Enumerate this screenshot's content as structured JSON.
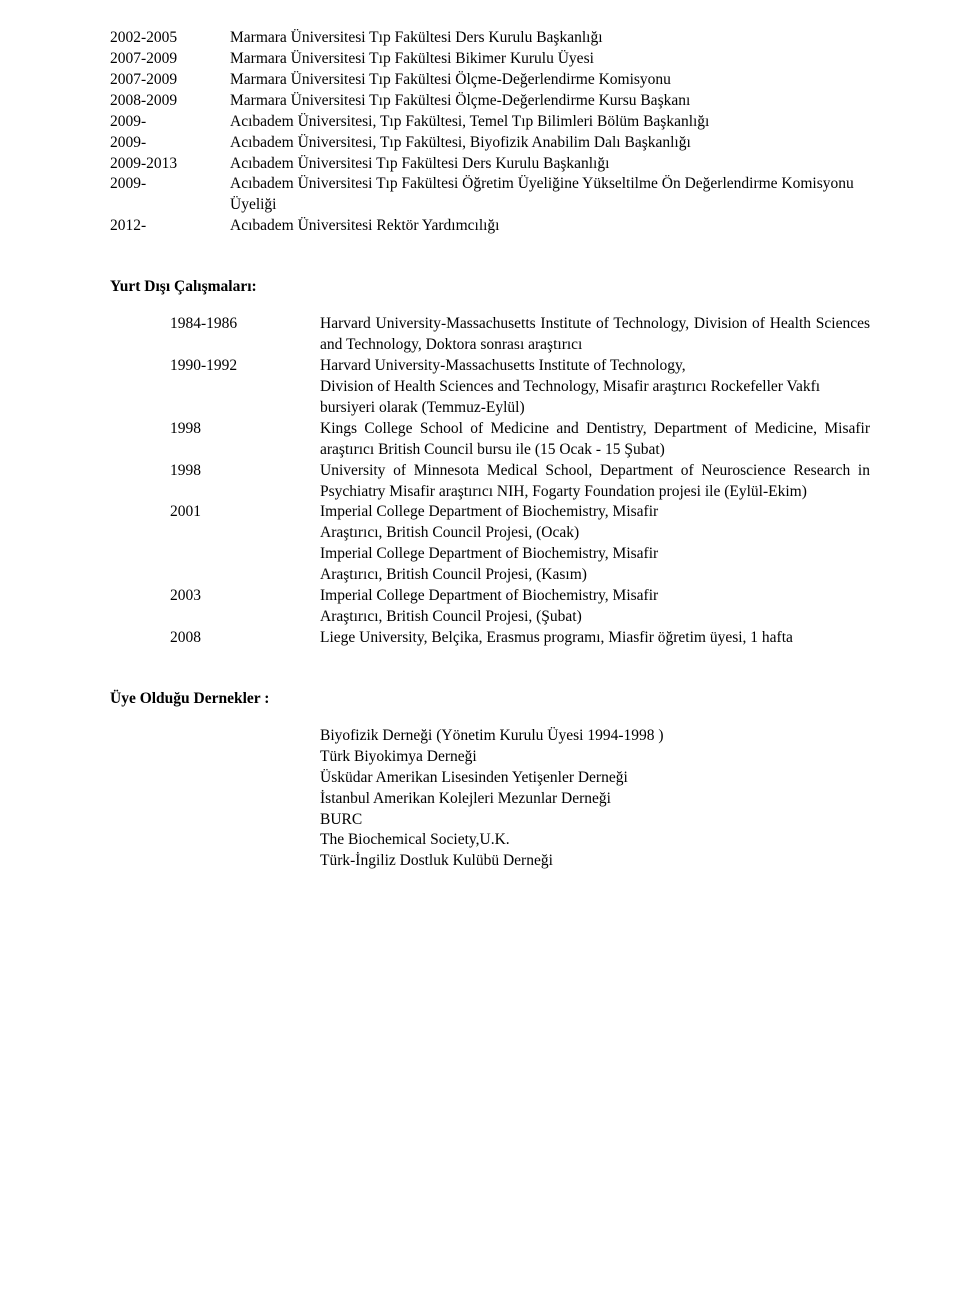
{
  "section1": {
    "entries": [
      {
        "year": "2002-2005",
        "desc": "Marmara Üniversitesi Tıp Fakültesi Ders Kurulu Başkanlığı"
      },
      {
        "year": "2007-2009",
        "desc": "Marmara Üniversitesi Tıp Fakültesi Bikimer Kurulu Üyesi"
      },
      {
        "year": "2007-2009",
        "desc": "Marmara Üniversitesi Tıp Fakültesi Ölçme-Değerlendirme Komisyonu"
      },
      {
        "year": "2008-2009",
        "desc": "Marmara Üniversitesi Tıp Fakültesi Ölçme-Değerlendirme Kursu Başkanı"
      },
      {
        "year": "2009-",
        "desc": "Acıbadem Üniversitesi, Tıp Fakültesi, Temel Tıp Bilimleri Bölüm Başkanlığı"
      },
      {
        "year": "2009-",
        "desc": "Acıbadem Üniversitesi, Tıp Fakültesi, Biyofizik Anabilim Dalı Başkanlığı"
      },
      {
        "year": "2009-2013",
        "desc": "Acıbadem Üniversitesi Tıp Fakültesi Ders Kurulu Başkanlığı"
      },
      {
        "year": "2009-",
        "desc": "Acıbadem Üniversitesi Tıp Fakültesi Öğretim Üyeliğine Yükseltilme Ön Değerlendirme Komisyonu Üyeliği"
      },
      {
        "year": "2012-",
        "desc": "Acıbadem Üniversitesi Rektör Yardımcılığı"
      }
    ]
  },
  "section2": {
    "heading": "Yurt Dışı Çalışmaları:",
    "entries": [
      {
        "year": "1984-1986",
        "desc": "Harvard University-Massachusetts Institute of Technology, Division of Health Sciences and Technology, Doktora sonrası araştırıcı",
        "justify": true
      },
      {
        "year": "1990-1992",
        "desc": "Harvard University-Massachusetts Institute of Technology,\nDivision of Health Sciences and Technology, Misafir araştırıcı Rockefeller Vakfı bursiyeri olarak (Temmuz-Eylül)"
      },
      {
        "year": "1998",
        "desc": "Kings College School of Medicine and Dentistry, Department of Medicine, Misafir araştırıcı British Council bursu ile (15 Ocak - 15 Şubat)",
        "justify": true
      },
      {
        "year": "1998",
        "desc": "University of Minnesota Medical School, Department of Neuroscience Research in Psychiatry Misafir araştırıcı NIH, Fogarty Foundation projesi ile (Eylül-Ekim)",
        "justify": true
      },
      {
        "year": "2001",
        "desc": "Imperial College Department of Biochemistry, Misafir\nAraştırıcı,  British Council Projesi, (Ocak)\nImperial College Department of Biochemistry, Misafir\nAraştırıcı,  British Council Projesi, (Kasım)"
      },
      {
        "year": "2003",
        "desc": "Imperial College Department of Biochemistry, Misafir\nAraştırıcı,  British Council Projesi, (Şubat)"
      },
      {
        "year": "2008",
        "desc": "Liege University, Belçika, Erasmus programı, Miasfir öğretim üyesi, 1 hafta"
      }
    ]
  },
  "section3": {
    "heading": "Üye Olduğu Dernekler :",
    "items": [
      "Biyofizik Derneği (Yönetim Kurulu Üyesi 1994-1998 )",
      "Türk Biyokimya Derneği",
      "Üsküdar Amerikan Lisesinden Yetişenler Derneği",
      "İstanbul Amerikan Kolejleri Mezunlar Derneği",
      "BURC",
      "The Biochemical Society,U.K.",
      "Türk-İngiliz Dostluk Kulübü Derneği"
    ]
  }
}
